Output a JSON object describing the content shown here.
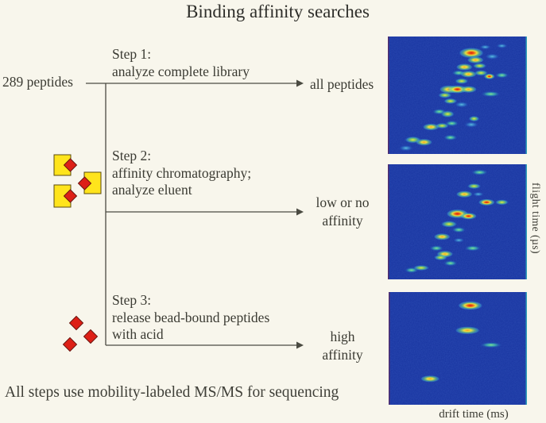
{
  "title": "Binding affinity searches",
  "source_label": "289 peptides",
  "steps": [
    {
      "label": "Step 1:",
      "description": [
        "analyze complete library"
      ],
      "result": [
        "all peptides"
      ]
    },
    {
      "label": "Step 2:",
      "description": [
        "affinity chromatography;",
        "analyze eluent"
      ],
      "result": [
        "low or no",
        "affinity"
      ]
    },
    {
      "label": "Step 3:",
      "description": [
        "release bead-bound peptides",
        "with acid"
      ],
      "result": [
        "high",
        "affinity"
      ]
    }
  ],
  "caption": "All steps use mobility-labeled MS/MS for sequencing",
  "axes": {
    "flight_time": "flight time (µs)",
    "drift_time": "drift time (ms)"
  },
  "icons": {
    "bead_bound_peptide": "yellow-square-with-red-diamond",
    "free_peptide": "red-diamond"
  },
  "colors": {
    "background": "#f8f6ec",
    "text": "#3b3b33",
    "line": "#4b4b42",
    "bead_yellow": "#ffe41c",
    "peptide_red": "#dd2017",
    "panel_blue": "#17339f"
  },
  "chart_data": [
    {
      "type": "heatmap",
      "label": "all peptides",
      "xlabel": "drift time (ms)",
      "ylabel": "flight time (µs)",
      "background": "#17339f",
      "spot_format": "[x_pct, y_pct, rx_pct, ry_pct, intensity_1cool_to_5hot]",
      "spots": [
        [
          60,
          14,
          9,
          4.5,
          5
        ],
        [
          70,
          9,
          4,
          2,
          1
        ],
        [
          82,
          8,
          4,
          2,
          1
        ],
        [
          63,
          20,
          6,
          3,
          4
        ],
        [
          75,
          17,
          5,
          2.5,
          1
        ],
        [
          55,
          26,
          6,
          3,
          4
        ],
        [
          66,
          25,
          5,
          2.5,
          3
        ],
        [
          51,
          31,
          5,
          2.5,
          2
        ],
        [
          58,
          32,
          6,
          3,
          4
        ],
        [
          67,
          31,
          5,
          2.5,
          3
        ],
        [
          73,
          34,
          4,
          2.5,
          5
        ],
        [
          82,
          33,
          5,
          2.5,
          2
        ],
        [
          53,
          38,
          5,
          2.5,
          3
        ],
        [
          44,
          45,
          7,
          3.5,
          4
        ],
        [
          50,
          45,
          7,
          3.5,
          5
        ],
        [
          58,
          45,
          6,
          3,
          4
        ],
        [
          74,
          49,
          7,
          2.5,
          2
        ],
        [
          41,
          50,
          5,
          2.5,
          3
        ],
        [
          45,
          55,
          5,
          2.5,
          3
        ],
        [
          53,
          58,
          5,
          2.5,
          1
        ],
        [
          37,
          64,
          5,
          2.5,
          2
        ],
        [
          43,
          66,
          5,
          3,
          3
        ],
        [
          62,
          70,
          4,
          2.5,
          3
        ],
        [
          31,
          77,
          6,
          3,
          4
        ],
        [
          39,
          76,
          5,
          2.5,
          3
        ],
        [
          46,
          74,
          5,
          2.5,
          2
        ],
        [
          60,
          75,
          5,
          2.5,
          1
        ],
        [
          18,
          88,
          6,
          3,
          3
        ],
        [
          26,
          90,
          6,
          3,
          4
        ],
        [
          45,
          86,
          5,
          2.5,
          2
        ],
        [
          13,
          95,
          5,
          2.5,
          1
        ]
      ]
    },
    {
      "type": "heatmap",
      "label": "low or no affinity",
      "xlabel": "drift time (ms)",
      "ylabel": "flight time (µs)",
      "background": "#17339f",
      "spot_format": "[x_pct, y_pct, rx_pct, ry_pct, intensity_1cool_to_5hot]",
      "spots": [
        [
          66,
          7,
          6,
          2.5,
          2
        ],
        [
          62,
          19,
          5,
          2.5,
          3
        ],
        [
          55,
          26,
          6,
          3,
          4
        ],
        [
          65,
          26,
          4,
          2,
          1
        ],
        [
          71,
          33,
          6,
          3,
          5
        ],
        [
          82,
          33,
          5,
          2.5,
          3
        ],
        [
          50,
          43,
          8,
          4,
          5
        ],
        [
          58,
          45,
          6,
          3,
          5
        ],
        [
          44,
          52,
          6,
          3,
          3
        ],
        [
          51,
          57,
          5,
          2.5,
          2
        ],
        [
          39,
          63,
          6,
          3,
          4
        ],
        [
          51,
          66,
          4,
          2,
          1
        ],
        [
          35,
          73,
          5,
          2.5,
          2
        ],
        [
          41,
          78,
          6,
          3,
          4
        ],
        [
          61,
          73,
          6,
          2.5,
          2
        ],
        [
          38,
          81,
          5,
          2.5,
          3
        ],
        [
          45,
          86,
          5,
          2.5,
          2
        ],
        [
          24,
          90,
          6,
          2.5,
          3
        ],
        [
          17,
          92,
          5,
          2.5,
          2
        ]
      ]
    },
    {
      "type": "heatmap",
      "label": "high affinity",
      "xlabel": "drift time (ms)",
      "ylabel": "flight time (µs)",
      "background": "#17339f",
      "spot_format": "[x_pct, y_pct, rx_pct, ry_pct, intensity_1cool_to_5hot]",
      "spots": [
        [
          59,
          12,
          9,
          4,
          5
        ],
        [
          57,
          34,
          9,
          3.5,
          4
        ],
        [
          74,
          47,
          8,
          2.5,
          2
        ],
        [
          30,
          77,
          7,
          3,
          4
        ]
      ]
    }
  ]
}
